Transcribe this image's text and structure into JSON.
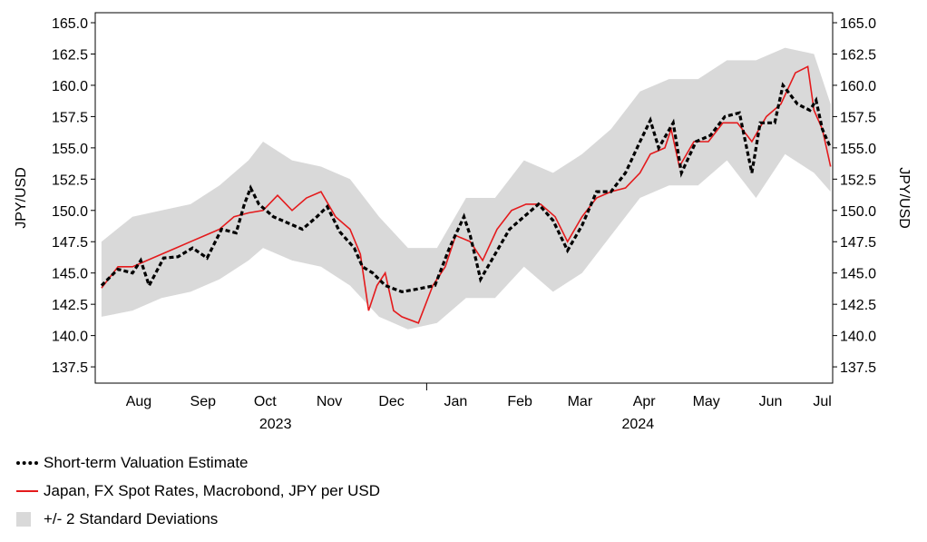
{
  "chart_data": {
    "type": "line",
    "y_axis": {
      "label_left": "JPY/USD",
      "label_right": "JPY/USD",
      "ticks": [
        "137.5",
        "140.0",
        "142.5",
        "145.0",
        "147.5",
        "150.0",
        "152.5",
        "155.0",
        "157.5",
        "160.0",
        "162.5",
        "165.0"
      ],
      "ylim": [
        136.2,
        165.8
      ]
    },
    "x_axis": {
      "xlim": [
        "2023-07-25",
        "2024-07-15"
      ],
      "month_labels": [
        {
          "label": "Aug",
          "date": "2023-08-15"
        },
        {
          "label": "Sep",
          "date": "2023-09-15"
        },
        {
          "label": "Oct",
          "date": "2023-10-15"
        },
        {
          "label": "Nov",
          "date": "2023-11-15"
        },
        {
          "label": "Dec",
          "date": "2023-12-15"
        },
        {
          "label": "Jan",
          "date": "2024-01-15"
        },
        {
          "label": "Feb",
          "date": "2024-02-15"
        },
        {
          "label": "Mar",
          "date": "2024-03-15"
        },
        {
          "label": "Apr",
          "date": "2024-04-15"
        },
        {
          "label": "May",
          "date": "2024-05-15"
        },
        {
          "label": "Jun",
          "date": "2024-06-15"
        },
        {
          "label": "Jul",
          "date": "2024-07-10"
        }
      ],
      "year_labels": [
        {
          "label": "2023",
          "date": "2023-10-20"
        },
        {
          "label": "2024",
          "date": "2024-04-12"
        }
      ],
      "year_divider": "2024-01-01"
    },
    "colors": {
      "estimate": "#000000",
      "spot": "#e41a1c",
      "band": "#d9d9d9"
    },
    "series": [
      {
        "name": "Short-term Valuation Estimate",
        "style": "dotted",
        "points": [
          [
            "2023-07-28",
            144.0
          ],
          [
            "2023-08-05",
            145.3
          ],
          [
            "2023-08-12",
            145.0
          ],
          [
            "2023-08-16",
            146.0
          ],
          [
            "2023-08-20",
            144.0
          ],
          [
            "2023-08-27",
            146.2
          ],
          [
            "2023-09-03",
            146.3
          ],
          [
            "2023-09-10",
            147.0
          ],
          [
            "2023-09-17",
            146.2
          ],
          [
            "2023-09-24",
            148.5
          ],
          [
            "2023-10-01",
            148.2
          ],
          [
            "2023-10-05",
            150.5
          ],
          [
            "2023-10-08",
            151.8
          ],
          [
            "2023-10-12",
            150.5
          ],
          [
            "2023-10-19",
            149.5
          ],
          [
            "2023-10-26",
            149.0
          ],
          [
            "2023-11-02",
            148.5
          ],
          [
            "2023-11-09",
            149.5
          ],
          [
            "2023-11-14",
            150.3
          ],
          [
            "2023-11-20",
            148.3
          ],
          [
            "2023-11-27",
            147.0
          ],
          [
            "2023-12-01",
            145.5
          ],
          [
            "2023-12-06",
            145.0
          ],
          [
            "2023-12-12",
            144.0
          ],
          [
            "2023-12-20",
            143.5
          ],
          [
            "2023-12-27",
            143.7
          ],
          [
            "2024-01-05",
            144.0
          ],
          [
            "2024-01-12",
            147.0
          ],
          [
            "2024-01-19",
            149.5
          ],
          [
            "2024-01-22",
            148.0
          ],
          [
            "2024-01-27",
            144.5
          ],
          [
            "2024-02-03",
            146.5
          ],
          [
            "2024-02-10",
            148.5
          ],
          [
            "2024-02-17",
            149.5
          ],
          [
            "2024-02-24",
            150.5
          ],
          [
            "2024-03-02",
            149.2
          ],
          [
            "2024-03-09",
            146.8
          ],
          [
            "2024-03-16",
            148.8
          ],
          [
            "2024-03-23",
            151.5
          ],
          [
            "2024-03-30",
            151.5
          ],
          [
            "2024-04-06",
            153.0
          ],
          [
            "2024-04-13",
            155.5
          ],
          [
            "2024-04-18",
            157.2
          ],
          [
            "2024-04-22",
            155.0
          ],
          [
            "2024-04-29",
            157.0
          ],
          [
            "2024-05-03",
            153.0
          ],
          [
            "2024-05-10",
            155.5
          ],
          [
            "2024-05-17",
            156.0
          ],
          [
            "2024-05-24",
            157.5
          ],
          [
            "2024-05-31",
            157.8
          ],
          [
            "2024-06-06",
            153.0
          ],
          [
            "2024-06-10",
            157.0
          ],
          [
            "2024-06-17",
            157.0
          ],
          [
            "2024-06-21",
            160.0
          ],
          [
            "2024-06-28",
            158.5
          ],
          [
            "2024-07-04",
            158.0
          ],
          [
            "2024-07-07",
            158.8
          ],
          [
            "2024-07-10",
            156.5
          ],
          [
            "2024-07-14",
            155.0
          ]
        ]
      },
      {
        "name": "Japan, FX Spot Rates, Macrobond, JPY per USD",
        "style": "solid",
        "points": [
          [
            "2023-07-28",
            143.8
          ],
          [
            "2023-08-05",
            145.5
          ],
          [
            "2023-08-12",
            145.5
          ],
          [
            "2023-08-19",
            146.0
          ],
          [
            "2023-08-26",
            146.5
          ],
          [
            "2023-09-02",
            147.0
          ],
          [
            "2023-09-09",
            147.5
          ],
          [
            "2023-09-16",
            148.0
          ],
          [
            "2023-09-23",
            148.5
          ],
          [
            "2023-09-30",
            149.5
          ],
          [
            "2023-10-07",
            149.8
          ],
          [
            "2023-10-14",
            150.0
          ],
          [
            "2023-10-21",
            151.2
          ],
          [
            "2023-10-28",
            150.0
          ],
          [
            "2023-11-04",
            151.0
          ],
          [
            "2023-11-11",
            151.5
          ],
          [
            "2023-11-18",
            149.5
          ],
          [
            "2023-11-25",
            148.5
          ],
          [
            "2023-11-30",
            146.5
          ],
          [
            "2023-12-04",
            142.0
          ],
          [
            "2023-12-08",
            144.0
          ],
          [
            "2023-12-12",
            145.0
          ],
          [
            "2023-12-16",
            142.0
          ],
          [
            "2023-12-20",
            141.5
          ],
          [
            "2023-12-28",
            141.0
          ],
          [
            "2024-01-04",
            144.0
          ],
          [
            "2024-01-10",
            145.5
          ],
          [
            "2024-01-15",
            148.0
          ],
          [
            "2024-01-22",
            147.5
          ],
          [
            "2024-01-28",
            146.0
          ],
          [
            "2024-02-04",
            148.5
          ],
          [
            "2024-02-11",
            150.0
          ],
          [
            "2024-02-18",
            150.5
          ],
          [
            "2024-02-25",
            150.5
          ],
          [
            "2024-03-03",
            149.5
          ],
          [
            "2024-03-09",
            147.5
          ],
          [
            "2024-03-16",
            149.5
          ],
          [
            "2024-03-23",
            151.0
          ],
          [
            "2024-03-30",
            151.5
          ],
          [
            "2024-04-06",
            151.8
          ],
          [
            "2024-04-13",
            153.0
          ],
          [
            "2024-04-18",
            154.5
          ],
          [
            "2024-04-25",
            155.0
          ],
          [
            "2024-04-28",
            156.5
          ],
          [
            "2024-05-02",
            153.5
          ],
          [
            "2024-05-09",
            155.5
          ],
          [
            "2024-05-16",
            155.5
          ],
          [
            "2024-05-23",
            157.0
          ],
          [
            "2024-05-30",
            157.0
          ],
          [
            "2024-06-06",
            155.5
          ],
          [
            "2024-06-13",
            157.5
          ],
          [
            "2024-06-20",
            158.5
          ],
          [
            "2024-06-27",
            161.0
          ],
          [
            "2024-07-03",
            161.5
          ],
          [
            "2024-07-06",
            158.0
          ],
          [
            "2024-07-10",
            156.5
          ],
          [
            "2024-07-14",
            153.5
          ]
        ]
      },
      {
        "name": "+/- 2 Standard Deviations",
        "style": "band",
        "points": [
          [
            "2023-07-28",
            141.5,
            147.5
          ],
          [
            "2023-08-12",
            142.0,
            149.5
          ],
          [
            "2023-08-26",
            143.0,
            150.0
          ],
          [
            "2023-09-09",
            143.5,
            150.5
          ],
          [
            "2023-09-23",
            144.5,
            152.0
          ],
          [
            "2023-10-07",
            146.0,
            154.0
          ],
          [
            "2023-10-14",
            147.0,
            155.5
          ],
          [
            "2023-10-28",
            146.0,
            154.0
          ],
          [
            "2023-11-11",
            145.5,
            153.5
          ],
          [
            "2023-11-25",
            144.0,
            152.5
          ],
          [
            "2023-12-09",
            141.5,
            149.5
          ],
          [
            "2023-12-23",
            140.5,
            147.0
          ],
          [
            "2024-01-06",
            141.0,
            147.0
          ],
          [
            "2024-01-20",
            143.0,
            151.0
          ],
          [
            "2024-02-03",
            143.0,
            151.0
          ],
          [
            "2024-02-17",
            145.5,
            154.0
          ],
          [
            "2024-03-02",
            143.5,
            153.0
          ],
          [
            "2024-03-16",
            145.0,
            154.5
          ],
          [
            "2024-03-30",
            148.0,
            156.5
          ],
          [
            "2024-04-13",
            151.0,
            159.5
          ],
          [
            "2024-04-27",
            152.0,
            160.5
          ],
          [
            "2024-05-11",
            152.0,
            160.5
          ],
          [
            "2024-05-25",
            154.0,
            162.0
          ],
          [
            "2024-06-08",
            151.0,
            162.0
          ],
          [
            "2024-06-22",
            154.5,
            163.0
          ],
          [
            "2024-07-06",
            153.0,
            162.5
          ],
          [
            "2024-07-14",
            151.5,
            158.5
          ]
        ]
      }
    ],
    "legend": {
      "position": "bottom-left",
      "items": [
        {
          "label": "Short-term Valuation Estimate",
          "style": "dotted"
        },
        {
          "label": "Japan, FX Spot Rates, Macrobond, JPY per USD",
          "style": "solid"
        },
        {
          "label": "+/- 2 Standard Deviations",
          "style": "band"
        }
      ]
    }
  }
}
